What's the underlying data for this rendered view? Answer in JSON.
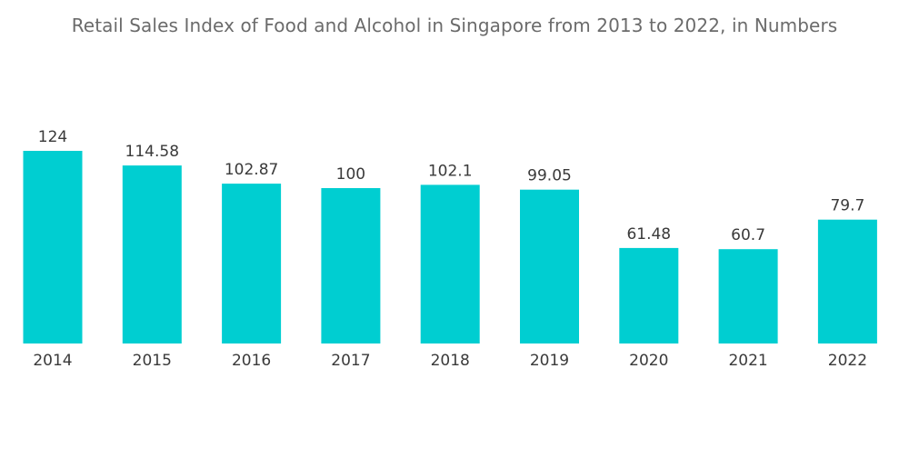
{
  "chart_data": {
    "type": "bar",
    "title": "Retail Sales Index of Food and Alcohol in Singapore from 2013 to 2022, in Numbers",
    "xlabel": "",
    "ylabel": "",
    "categories": [
      "2014",
      "2015",
      "2016",
      "2017",
      "2018",
      "2019",
      "2020",
      "2021",
      "2022"
    ],
    "values": [
      124,
      114.58,
      102.87,
      100,
      102.1,
      99.05,
      61.48,
      60.7,
      79.7
    ],
    "value_labels": [
      "124",
      "114.58",
      "102.87",
      "100",
      "102.1",
      "99.05",
      "61.48",
      "60.7",
      "79.7"
    ],
    "ylim": [
      0,
      124
    ],
    "grid": false,
    "legend": "none",
    "bar_color": "#00ced1"
  }
}
